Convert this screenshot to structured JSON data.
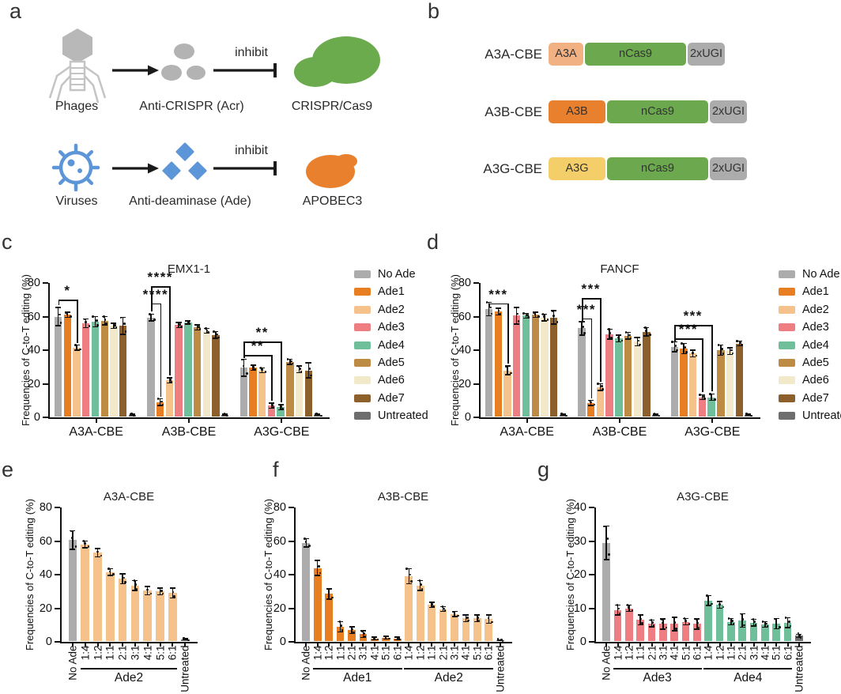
{
  "panels": {
    "a": "a",
    "b": "b",
    "c": "c",
    "d": "d",
    "e": "e",
    "f": "f",
    "g": "g"
  },
  "panel_a": {
    "row1": {
      "source": "Phages",
      "mediator": "Anti-CRISPR (Acr)",
      "action": "inhibit",
      "target": "CRISPR/Cas9"
    },
    "row2": {
      "source": "Viruses",
      "mediator": "Anti-deaminase (Ade)",
      "action": "inhibit",
      "target": "APOBEC3"
    }
  },
  "diagram_colors": {
    "phage_gray": "#B8B8B8",
    "outline_gray": "#C4C4C4",
    "acr_gray": "#B3B3B3",
    "cas9_green": "#6BAA4D",
    "virus_blue": "#5C96D8",
    "apobec_orange": "#E8802D",
    "line_black": "#1A1A1A"
  },
  "panel_b": {
    "constructs": [
      {
        "name": "A3A-CBE",
        "blocks": [
          {
            "label": "A3A",
            "color": "#F2B183"
          },
          {
            "label": "nCas9",
            "color": "#6CA94E"
          },
          {
            "label": "2xUGI",
            "color": "#ACACAC"
          }
        ]
      },
      {
        "name": "A3B-CBE",
        "blocks": [
          {
            "label": "A3B",
            "color": "#E8802D"
          },
          {
            "label": "nCas9",
            "color": "#6CA94E"
          },
          {
            "label": "2xUGI",
            "color": "#ACACAC"
          }
        ]
      },
      {
        "name": "A3G-CBE",
        "blocks": [
          {
            "label": "A3G",
            "color": "#F4CE69"
          },
          {
            "label": "nCas9",
            "color": "#6CA94E"
          },
          {
            "label": "2xUGI",
            "color": "#ACACAC"
          }
        ]
      }
    ]
  },
  "series_colors": {
    "no_ade": "#ACACAC",
    "ade1": "#E87E22",
    "ade2": "#F6C28C",
    "ade3": "#EE7E82",
    "ade4": "#6FBF9B",
    "ade5": "#BE8B45",
    "ade6": "#F2E9CB",
    "ade7": "#8C5F2B",
    "untreated": "#6E6E6E"
  },
  "chart_data": [
    {
      "id": "c",
      "type": "bar",
      "title": "EMX1-1",
      "ylabel": "Frequencies of C-to-T editing (%)",
      "ylim": [
        0,
        80
      ],
      "yticks": [
        0,
        20,
        40,
        60,
        80
      ],
      "grid": false,
      "legend_position": "right",
      "categories": [
        "A3A-CBE",
        "A3B-CBE",
        "A3G-CBE"
      ],
      "series": [
        {
          "name": "No Ade",
          "color": "no_ade",
          "values": [
            60,
            59.5,
            29.5
          ],
          "errors": [
            5.5,
            2,
            5
          ]
        },
        {
          "name": "Ade1",
          "color": "ade1",
          "values": [
            61,
            9,
            29.5
          ],
          "errors": [
            1.5,
            2,
            1.5
          ]
        },
        {
          "name": "Ade2",
          "color": "ade2",
          "values": [
            41.5,
            22,
            28
          ],
          "errors": [
            1.5,
            1.5,
            1.5
          ]
        },
        {
          "name": "Ade3",
          "color": "ade3",
          "values": [
            56,
            55,
            7
          ],
          "errors": [
            2.5,
            1.5,
            1.5
          ]
        },
        {
          "name": "Ade4",
          "color": "ade4",
          "values": [
            57,
            56.5,
            6
          ],
          "errors": [
            3,
            1,
            1.5
          ]
        },
        {
          "name": "Ade5",
          "color": "ade5",
          "values": [
            57.5,
            53.5,
            33
          ],
          "errors": [
            2.5,
            1.5,
            1.5
          ]
        },
        {
          "name": "Ade6",
          "color": "ade6",
          "values": [
            54.5,
            51.5,
            28.5
          ],
          "errors": [
            1.5,
            1.5,
            2
          ]
        },
        {
          "name": "Ade7",
          "color": "ade7",
          "values": [
            54.5,
            49,
            28
          ],
          "errors": [
            5,
            2,
            4.5
          ]
        },
        {
          "name": "Untreated",
          "color": "untreated",
          "values": [
            1.5,
            1.5,
            1.5
          ],
          "errors": [
            0.3,
            0.3,
            0.3
          ]
        }
      ],
      "significance": [
        {
          "group": 0,
          "from_series": 0,
          "to_series": 2,
          "label": "*",
          "y": 70
        },
        {
          "group": 1,
          "from_series": 0,
          "to_series": 1,
          "label": "****",
          "y": 68
        },
        {
          "group": 1,
          "from_series": 0,
          "to_series": 2,
          "label": "****",
          "y": 78
        },
        {
          "group": 2,
          "from_series": 0,
          "to_series": 3,
          "label": "**",
          "y": 37
        },
        {
          "group": 2,
          "from_series": 0,
          "to_series": 4,
          "label": "**",
          "y": 45
        }
      ]
    },
    {
      "id": "d",
      "type": "bar",
      "title": "FANCF",
      "ylabel": "Frequencies of C-to-T editing (%)",
      "ylim": [
        0,
        80
      ],
      "yticks": [
        0,
        20,
        40,
        60,
        80
      ],
      "grid": false,
      "legend_position": "right",
      "categories": [
        "A3A-CBE",
        "A3B-CBE",
        "A3G-CBE"
      ],
      "series": [
        {
          "name": "No Ade",
          "color": "no_ade",
          "values": [
            64.5,
            53,
            42
          ],
          "errors": [
            4,
            4,
            3
          ]
        },
        {
          "name": "Ade1",
          "color": "ade1",
          "values": [
            63,
            8.5,
            41
          ],
          "errors": [
            2,
            1.5,
            3
          ]
        },
        {
          "name": "Ade2",
          "color": "ade2",
          "values": [
            28,
            18,
            38
          ],
          "errors": [
            2.5,
            2,
            2
          ]
        },
        {
          "name": "Ade3",
          "color": "ade3",
          "values": [
            60.5,
            49.5,
            12
          ],
          "errors": [
            5,
            3,
            1.5
          ]
        },
        {
          "name": "Ade4",
          "color": "ade4",
          "values": [
            60.5,
            47,
            12
          ],
          "errors": [
            1.5,
            2,
            2
          ]
        },
        {
          "name": "Ade5",
          "color": "ade5",
          "values": [
            61,
            48.5,
            40
          ],
          "errors": [
            1.5,
            2,
            3
          ]
        },
        {
          "name": "Ade6",
          "color": "ade6",
          "values": [
            59.5,
            45,
            39.5
          ],
          "errors": [
            2,
            2.5,
            2
          ]
        },
        {
          "name": "Ade7",
          "color": "ade7",
          "values": [
            59.5,
            51,
            44
          ],
          "errors": [
            4,
            2.5,
            1.5
          ]
        },
        {
          "name": "Untreated",
          "color": "untreated",
          "values": [
            1.5,
            1.5,
            1.5
          ],
          "errors": [
            0.3,
            0.3,
            0.3
          ]
        }
      ],
      "significance": [
        {
          "group": 0,
          "from_series": 0,
          "to_series": 2,
          "label": "***",
          "y": 68
        },
        {
          "group": 1,
          "from_series": 0,
          "to_series": 1,
          "label": "***",
          "y": 59
        },
        {
          "group": 1,
          "from_series": 0,
          "to_series": 2,
          "label": "***",
          "y": 71
        },
        {
          "group": 2,
          "from_series": 0,
          "to_series": 3,
          "label": "***",
          "y": 47
        },
        {
          "group": 2,
          "from_series": 0,
          "to_series": 4,
          "label": "***",
          "y": 55
        }
      ]
    },
    {
      "id": "e",
      "type": "bar",
      "title": "A3A-CBE",
      "ylabel": "Frequencies of C-to-T editing (%)",
      "ylim": [
        0,
        80
      ],
      "yticks": [
        0,
        20,
        40,
        60,
        80
      ],
      "grid": false,
      "bars": [
        {
          "label": "No Ade",
          "value": 60.5,
          "error": 5.5,
          "color": "no_ade"
        },
        {
          "label": "1:4",
          "value": 58,
          "error": 2,
          "color": "ade2"
        },
        {
          "label": "1:2",
          "value": 53,
          "error": 2.5,
          "color": "ade2"
        },
        {
          "label": "1:1",
          "value": 41.5,
          "error": 2,
          "color": "ade2"
        },
        {
          "label": "2:1",
          "value": 37.5,
          "error": 3,
          "color": "ade2"
        },
        {
          "label": "3:1",
          "value": 33.5,
          "error": 3,
          "color": "ade2"
        },
        {
          "label": "4:1",
          "value": 30.5,
          "error": 2.5,
          "color": "ade2"
        },
        {
          "label": "5:1",
          "value": 30,
          "error": 2,
          "color": "ade2"
        },
        {
          "label": "6:1",
          "value": 29,
          "error": 3,
          "color": "ade2"
        },
        {
          "label": "Untreated",
          "value": 1.5,
          "error": 0.4,
          "color": "untreated"
        }
      ],
      "group_labels": [
        {
          "label": "Ade2",
          "from": 1,
          "to": 8
        }
      ]
    },
    {
      "id": "f",
      "type": "bar",
      "title": "A3B-CBE",
      "ylabel": "Frequencies of C-to-T editing (%)",
      "ylim": [
        0,
        80
      ],
      "yticks": [
        0,
        20,
        40,
        60,
        80
      ],
      "grid": false,
      "bars": [
        {
          "label": "No Ade",
          "value": 59,
          "error": 2.5,
          "color": "no_ade"
        },
        {
          "label": "1:4",
          "value": 44,
          "error": 4.5,
          "color": "ade1"
        },
        {
          "label": "1:2",
          "value": 28.5,
          "error": 3,
          "color": "ade1"
        },
        {
          "label": "1:1",
          "value": 9,
          "error": 3,
          "color": "ade1"
        },
        {
          "label": "2:1",
          "value": 7,
          "error": 2,
          "color": "ade1"
        },
        {
          "label": "3:1",
          "value": 4.5,
          "error": 2,
          "color": "ade1"
        },
        {
          "label": "4:1",
          "value": 2,
          "error": 0.8,
          "color": "ade1"
        },
        {
          "label": "5:1",
          "value": 2.5,
          "error": 0.8,
          "color": "ade1"
        },
        {
          "label": "6:1",
          "value": 2,
          "error": 0.8,
          "color": "ade1"
        },
        {
          "label": "1:4",
          "value": 39,
          "error": 4.5,
          "color": "ade2"
        },
        {
          "label": "1:2",
          "value": 33.5,
          "error": 3,
          "color": "ade2"
        },
        {
          "label": "1:1",
          "value": 22,
          "error": 1.5,
          "color": "ade2"
        },
        {
          "label": "2:1",
          "value": 19.5,
          "error": 1.5,
          "color": "ade2"
        },
        {
          "label": "3:1",
          "value": 16.5,
          "error": 1.5,
          "color": "ade2"
        },
        {
          "label": "4:1",
          "value": 14,
          "error": 2,
          "color": "ade2"
        },
        {
          "label": "5:1",
          "value": 14,
          "error": 2,
          "color": "ade2"
        },
        {
          "label": "6:1",
          "value": 13.5,
          "error": 2.5,
          "color": "ade2"
        },
        {
          "label": "Untreated",
          "value": 1,
          "error": 0.3,
          "color": "untreated"
        }
      ],
      "group_labels": [
        {
          "label": "Ade1",
          "from": 1,
          "to": 8
        },
        {
          "label": "Ade2",
          "from": 9,
          "to": 16
        }
      ]
    },
    {
      "id": "g",
      "type": "bar",
      "title": "A3G-CBE",
      "ylabel": "Frequencies of C-to-T editing (%)",
      "ylim": [
        0,
        40
      ],
      "yticks": [
        0,
        10,
        20,
        30,
        40
      ],
      "grid": false,
      "bars": [
        {
          "label": "No Ade",
          "value": 29.5,
          "error": 5,
          "color": "no_ade"
        },
        {
          "label": "1:4",
          "value": 9.5,
          "error": 1.5,
          "color": "ade3"
        },
        {
          "label": "1:2",
          "value": 10,
          "error": 1,
          "color": "ade3"
        },
        {
          "label": "1:1",
          "value": 6.5,
          "error": 1.5,
          "color": "ade3"
        },
        {
          "label": "2:1",
          "value": 5.5,
          "error": 1,
          "color": "ade3"
        },
        {
          "label": "3:1",
          "value": 5.3,
          "error": 1.5,
          "color": "ade3"
        },
        {
          "label": "4:1",
          "value": 5.3,
          "error": 2,
          "color": "ade3"
        },
        {
          "label": "5:1",
          "value": 6,
          "error": 1,
          "color": "ade3"
        },
        {
          "label": "6:1",
          "value": 5.3,
          "error": 1.5,
          "color": "ade3"
        },
        {
          "label": "1:4",
          "value": 12.3,
          "error": 1.5,
          "color": "ade4"
        },
        {
          "label": "1:2",
          "value": 11,
          "error": 1,
          "color": "ade4"
        },
        {
          "label": "1:1",
          "value": 6,
          "error": 1,
          "color": "ade4"
        },
        {
          "label": "2:1",
          "value": 6.3,
          "error": 2,
          "color": "ade4"
        },
        {
          "label": "3:1",
          "value": 5.7,
          "error": 1,
          "color": "ade4"
        },
        {
          "label": "4:1",
          "value": 5.2,
          "error": 0.8,
          "color": "ade4"
        },
        {
          "label": "5:1",
          "value": 5.4,
          "error": 1.5,
          "color": "ade4"
        },
        {
          "label": "6:1",
          "value": 5.7,
          "error": 1.5,
          "color": "ade4"
        },
        {
          "label": "Untreated",
          "value": 1.8,
          "error": 0.5,
          "color": "untreated"
        }
      ],
      "group_labels": [
        {
          "label": "Ade3",
          "from": 1,
          "to": 8
        },
        {
          "label": "Ade4",
          "from": 9,
          "to": 16
        }
      ]
    }
  ]
}
